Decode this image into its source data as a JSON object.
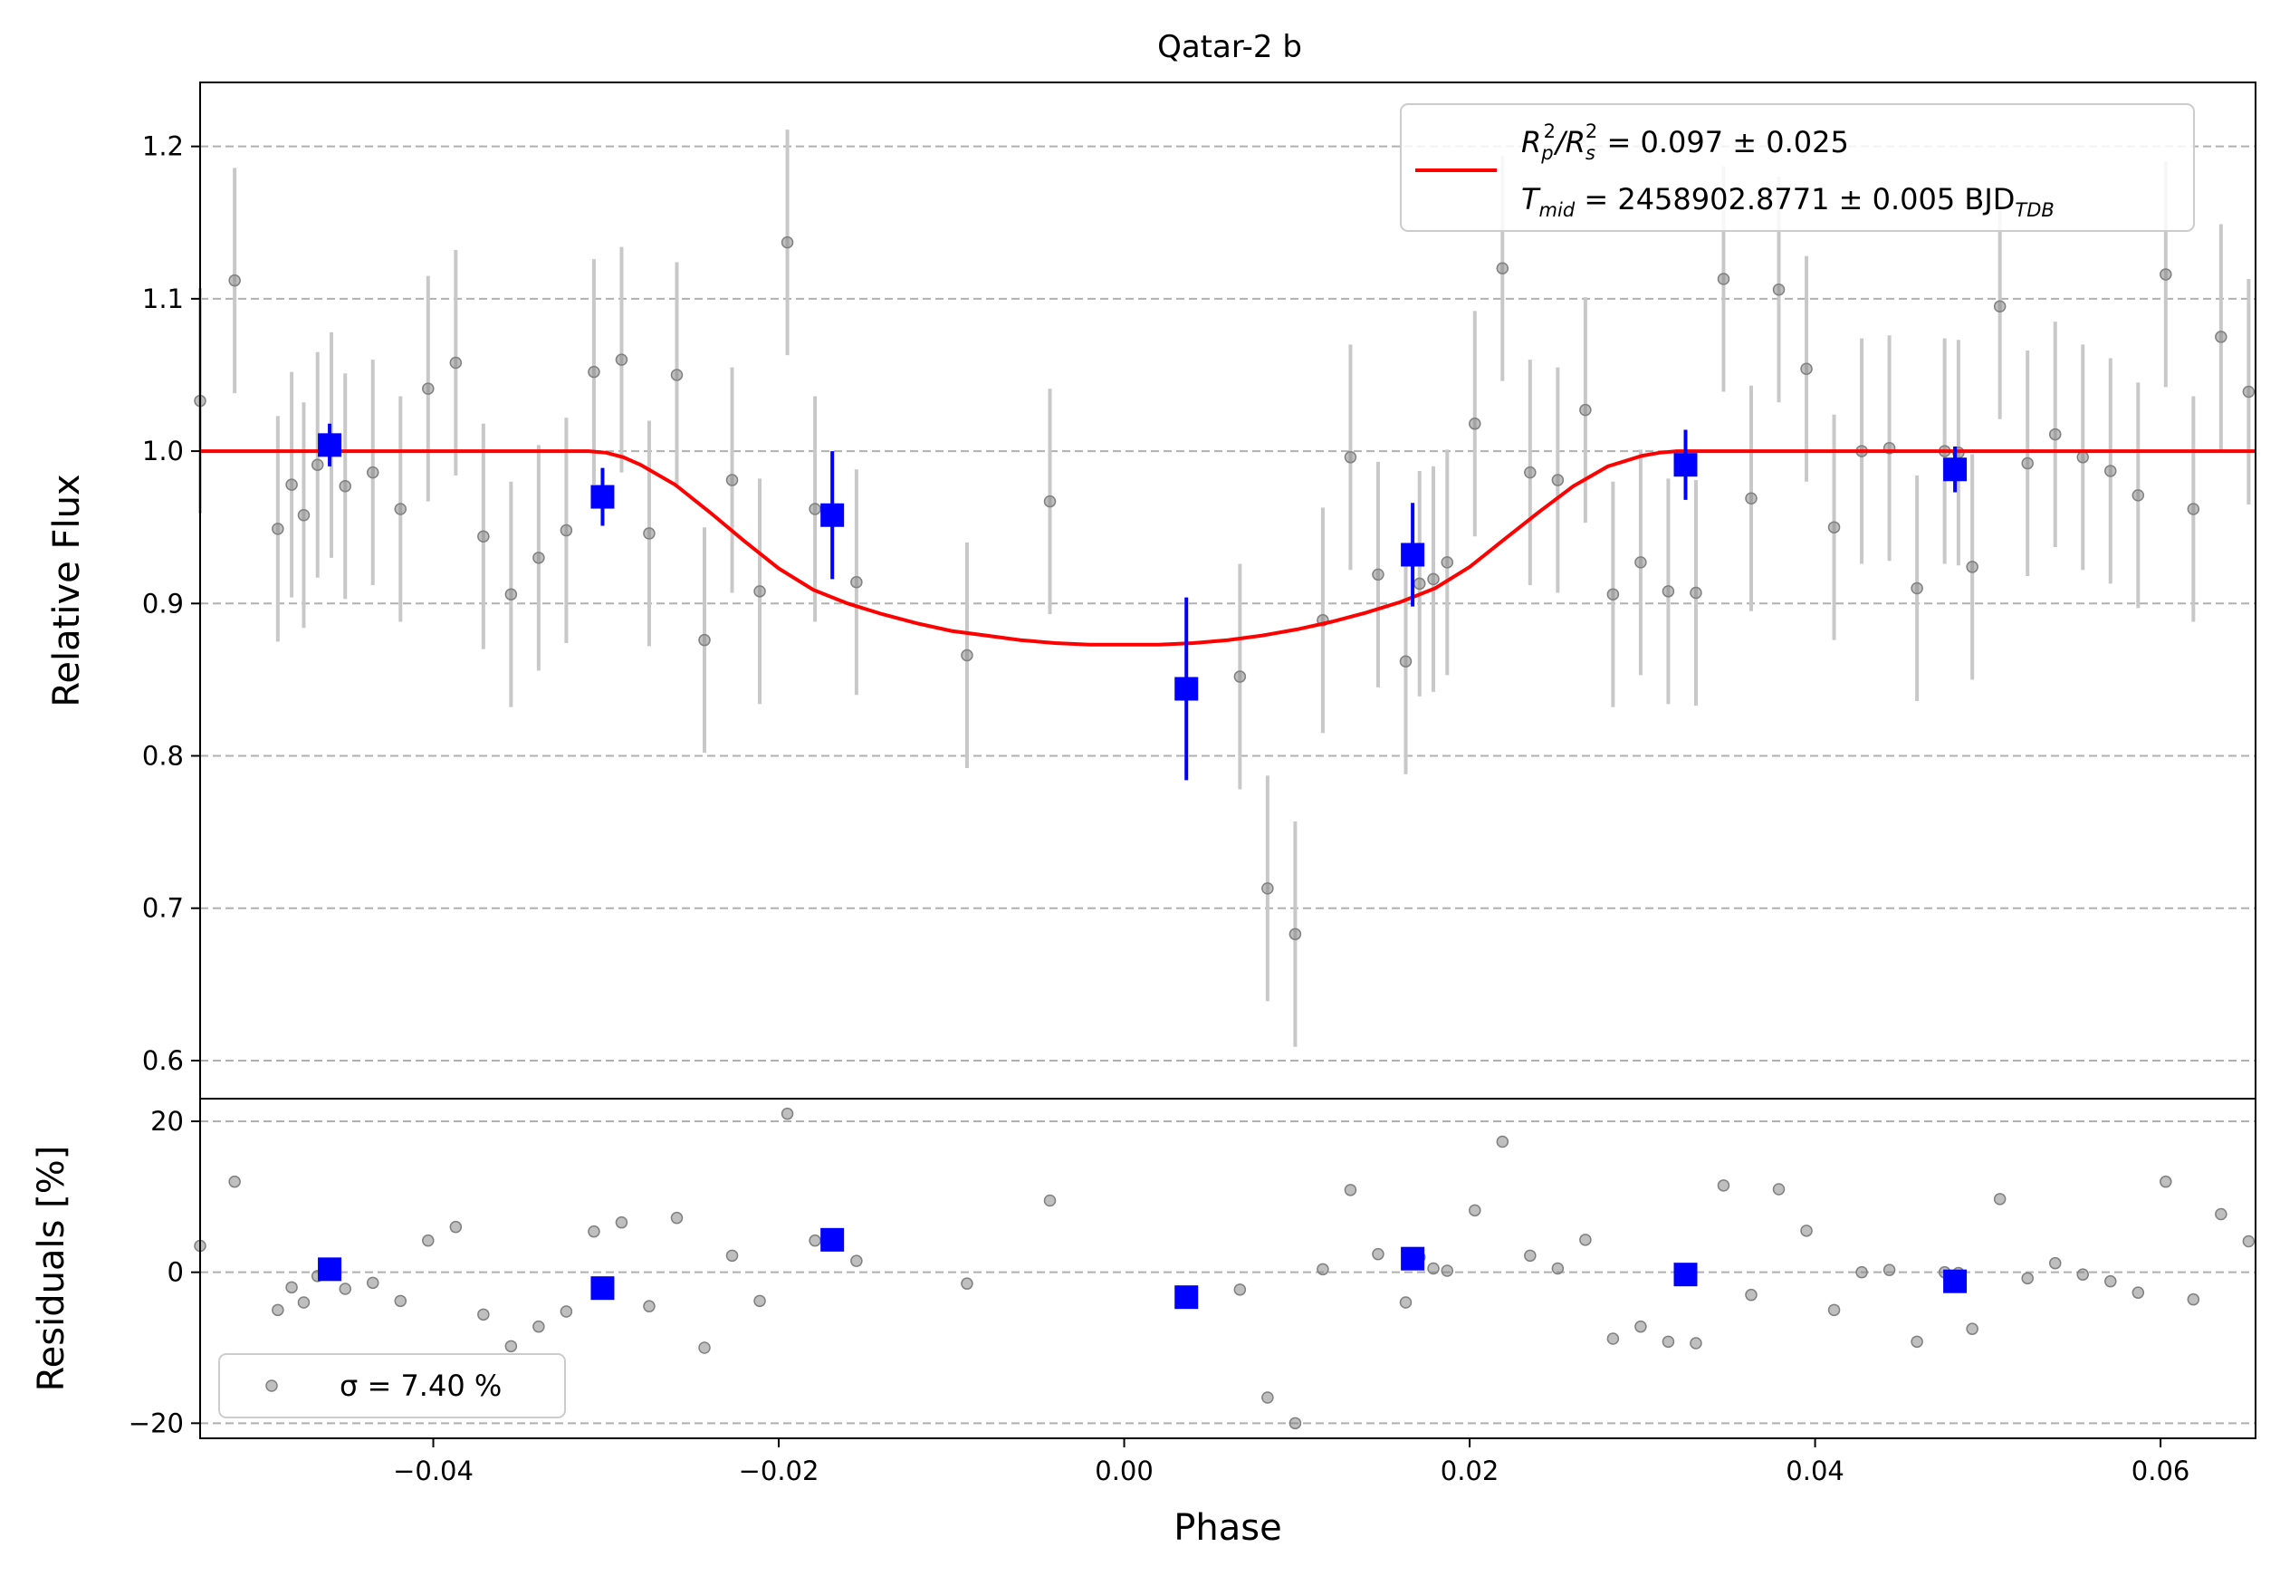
{
  "chart_data": {
    "type": "scatter",
    "title": "Qatar-2 b",
    "xlabel": "Phase",
    "colors": {
      "raw": "#808080",
      "raw_err": "#c8c8c8",
      "binned": "#0000ff",
      "model": "#ff0000",
      "grid": "#b0b0b0"
    },
    "top": {
      "ylabel": "Relative Flux",
      "xlim": [
        -0.0535,
        0.0655
      ],
      "ylim": [
        0.575,
        1.242
      ],
      "yticks": [
        0.6,
        0.7,
        0.8,
        0.9,
        1.0,
        1.1,
        1.2
      ],
      "ytick_labels": [
        "0.6",
        "0.7",
        "0.8",
        "0.9",
        "1.0",
        "1.1",
        "1.2"
      ],
      "grid": "y-dashed",
      "legend_position": "top-right",
      "legend_lines": [
        [
          "R",
          "p",
          "2",
          "/R",
          "s",
          "2",
          " = 0.097 ± 0.025"
        ],
        [
          "T",
          "mid",
          "",
          " = 2458902.8771 ± 0.005 BJD",
          "TDB",
          "",
          ""
        ]
      ],
      "model": {
        "name": "transit model",
        "x": [
          -0.0535,
          -0.031,
          -0.03,
          -0.029,
          -0.028,
          -0.026,
          -0.024,
          -0.022,
          -0.02,
          -0.018,
          -0.016,
          -0.014,
          -0.012,
          -0.01,
          -0.008,
          -0.006,
          -0.004,
          -0.002,
          0.0,
          0.002,
          0.004,
          0.006,
          0.008,
          0.01,
          0.012,
          0.014,
          0.016,
          0.018,
          0.02,
          0.022,
          0.024,
          0.026,
          0.028,
          0.03,
          0.031,
          0.032,
          0.0655
        ],
        "y": [
          1.0,
          1.0,
          0.999,
          0.996,
          0.991,
          0.978,
          0.96,
          0.941,
          0.923,
          0.909,
          0.9,
          0.893,
          0.887,
          0.882,
          0.879,
          0.876,
          0.874,
          0.873,
          0.873,
          0.873,
          0.874,
          0.876,
          0.879,
          0.883,
          0.888,
          0.894,
          0.901,
          0.91,
          0.924,
          0.942,
          0.96,
          0.977,
          0.99,
          0.997,
          0.999,
          1.0,
          1.0
        ]
      },
      "raw": {
        "x": [
          -0.0535,
          -0.0515,
          -0.049,
          -0.0482,
          -0.0475,
          -0.0467,
          -0.0459,
          -0.0451,
          -0.0435,
          -0.0419,
          -0.0403,
          -0.0387,
          -0.0371,
          -0.0355,
          -0.0339,
          -0.0323,
          -0.0307,
          -0.0291,
          -0.0275,
          -0.0259,
          -0.0243,
          -0.0227,
          -0.0211,
          -0.0195,
          -0.0179,
          -0.0155,
          -0.0091,
          -0.0043,
          0.0067,
          0.0083,
          0.0099,
          0.0115,
          0.0131,
          0.0147,
          0.0163,
          0.0171,
          0.0179,
          0.0187,
          0.0203,
          0.0219,
          0.0235,
          0.0251,
          0.0267,
          0.0283,
          0.0299,
          0.0315,
          0.0331,
          0.0347,
          0.0363,
          0.0379,
          0.0395,
          0.0411,
          0.0427,
          0.0443,
          0.0459,
          0.0475,
          0.0483,
          0.0491,
          0.0507,
          0.0523,
          0.0539,
          0.0555,
          0.0571,
          0.0587,
          0.0603,
          0.0619,
          0.0635,
          0.0651
        ],
        "y": [
          1.033,
          1.112,
          0.949,
          0.978,
          0.958,
          0.991,
          1.004,
          0.977,
          0.986,
          0.962,
          1.041,
          1.058,
          0.944,
          0.906,
          0.93,
          0.948,
          1.052,
          1.06,
          0.946,
          1.05,
          0.876,
          0.981,
          0.908,
          1.137,
          0.962,
          0.914,
          0.866,
          0.967,
          0.852,
          0.713,
          0.683,
          0.889,
          0.996,
          0.919,
          0.862,
          0.913,
          0.916,
          0.927,
          1.018,
          1.12,
          0.986,
          0.981,
          1.027,
          0.906,
          0.927,
          0.908,
          0.907,
          1.113,
          0.969,
          1.106,
          1.054,
          0.95,
          1.0,
          1.002,
          0.91,
          1.0,
          0.999,
          0.924,
          1.095,
          0.992,
          1.011,
          0.996,
          0.987,
          0.971,
          1.116,
          0.962,
          1.075,
          1.039
        ],
        "err": [
          0.074,
          0.074,
          0.074,
          0.074,
          0.074,
          0.074,
          0.074,
          0.074,
          0.074,
          0.074,
          0.074,
          0.074,
          0.074,
          0.074,
          0.074,
          0.074,
          0.074,
          0.074,
          0.074,
          0.074,
          0.074,
          0.074,
          0.074,
          0.074,
          0.074,
          0.074,
          0.074,
          0.074,
          0.074,
          0.074,
          0.074,
          0.074,
          0.074,
          0.074,
          0.074,
          0.074,
          0.074,
          0.074,
          0.074,
          0.074,
          0.074,
          0.074,
          0.074,
          0.074,
          0.074,
          0.074,
          0.074,
          0.074,
          0.074,
          0.074,
          0.074,
          0.074,
          0.074,
          0.074,
          0.074,
          0.074,
          0.074,
          0.074,
          0.074,
          0.074,
          0.074,
          0.074,
          0.074,
          0.074,
          0.074,
          0.074,
          0.074,
          0.074
        ]
      },
      "binned": {
        "x": [
          -0.046,
          -0.0302,
          -0.0169,
          0.0036,
          0.0167,
          0.0325,
          0.0481
        ],
        "y": [
          1.004,
          0.97,
          0.958,
          0.844,
          0.932,
          0.991,
          0.988
        ],
        "err": [
          0.014,
          0.019,
          0.042,
          0.06,
          0.034,
          0.023,
          0.015
        ]
      }
    },
    "bottom": {
      "ylabel": "Residuals [%]",
      "xlim": [
        -0.0535,
        0.0655
      ],
      "ylim": [
        -22,
        23
      ],
      "yticks": [
        -20,
        0,
        20
      ],
      "ytick_labels": [
        "−20",
        "0",
        "20"
      ],
      "xticks": [
        -0.04,
        -0.02,
        0.0,
        0.02,
        0.04,
        0.06
      ],
      "xtick_labels": [
        "−0.04",
        "−0.02",
        "0.00",
        "0.02",
        "0.04",
        "0.06"
      ],
      "grid": "y-dashed",
      "legend_position": "lower-left",
      "legend_label": "σ = 7.40 %",
      "raw": {
        "x": [
          -0.0535,
          -0.0515,
          -0.049,
          -0.0482,
          -0.0475,
          -0.0467,
          -0.0459,
          -0.0451,
          -0.0435,
          -0.0419,
          -0.0403,
          -0.0387,
          -0.0371,
          -0.0355,
          -0.0339,
          -0.0323,
          -0.0307,
          -0.0291,
          -0.0275,
          -0.0259,
          -0.0243,
          -0.0227,
          -0.0211,
          -0.0195,
          -0.0179,
          -0.0155,
          -0.0091,
          -0.0043,
          0.0067,
          0.0083,
          0.0099,
          0.0115,
          0.0131,
          0.0147,
          0.0163,
          0.0171,
          0.0179,
          0.0187,
          0.0203,
          0.0219,
          0.0235,
          0.0251,
          0.0267,
          0.0283,
          0.0299,
          0.0315,
          0.0331,
          0.0347,
          0.0363,
          0.0379,
          0.0395,
          0.0411,
          0.0427,
          0.0443,
          0.0459,
          0.0475,
          0.0483,
          0.0491,
          0.0507,
          0.0523,
          0.0539,
          0.0555,
          0.0571,
          0.0587,
          0.0603,
          0.0619,
          0.0635,
          0.0651
        ],
        "y": [
          3.5,
          12.0,
          -5.0,
          -2.0,
          -4.0,
          -0.5,
          0.5,
          -2.2,
          -1.4,
          -3.8,
          4.2,
          6.0,
          -5.6,
          -9.8,
          -7.2,
          -5.2,
          5.4,
          6.6,
          -4.5,
          7.2,
          -10.0,
          2.2,
          -3.8,
          21.0,
          4.2,
          1.5,
          -1.5,
          9.5,
          -2.3,
          -16.6,
          -20.0,
          0.4,
          10.9,
          2.4,
          -4.0,
          2.0,
          0.5,
          0.2,
          8.2,
          17.3,
          2.2,
          0.5,
          4.3,
          -8.8,
          -7.2,
          -9.2,
          -9.4,
          11.5,
          -3.0,
          11.0,
          5.5,
          -5.0,
          0.0,
          0.3,
          -9.2,
          0.0,
          -0.1,
          -7.5,
          9.7,
          -0.8,
          1.2,
          -0.3,
          -1.2,
          -2.7,
          12.0,
          -3.6,
          7.7,
          4.1
        ]
      },
      "binned": {
        "x": [
          -0.046,
          -0.0302,
          -0.0169,
          0.0036,
          0.0167,
          0.0325,
          0.0481
        ],
        "y": [
          0.4,
          -2.1,
          4.3,
          -3.3,
          1.8,
          -0.3,
          -1.2
        ]
      }
    }
  }
}
